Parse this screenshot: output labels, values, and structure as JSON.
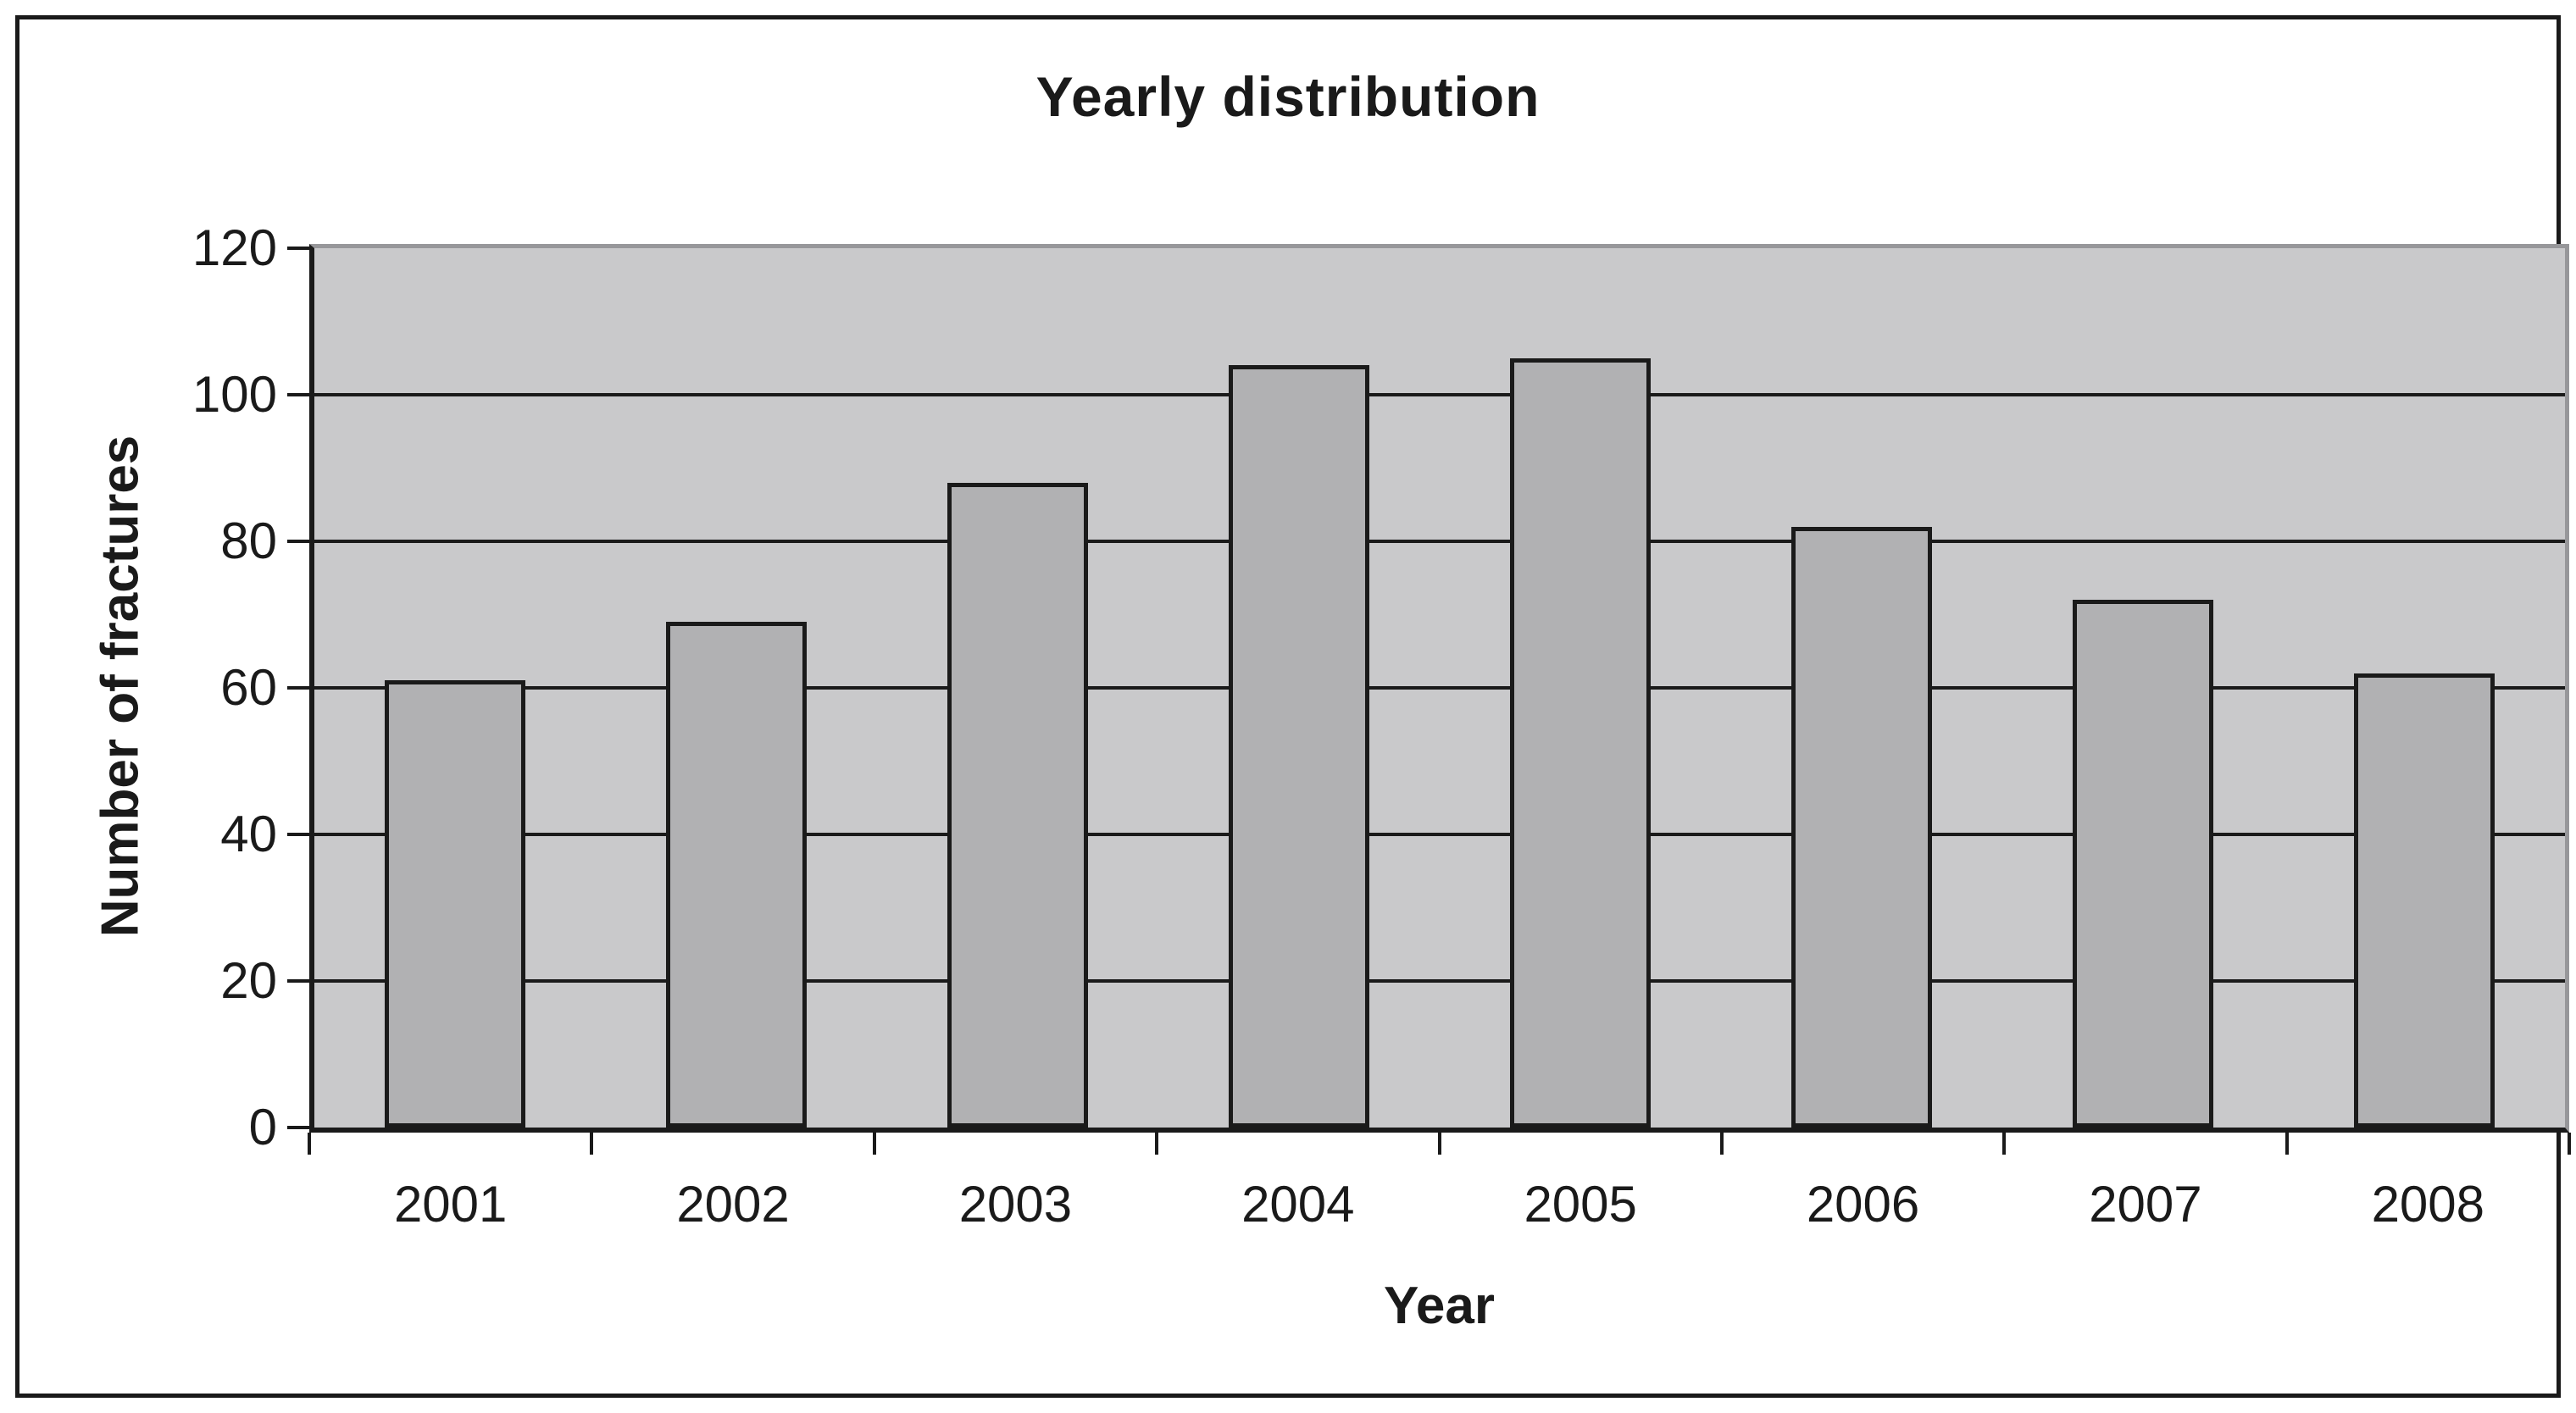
{
  "chart_data": {
    "type": "bar",
    "title": "Yearly distribution",
    "categories": [
      "2001",
      "2002",
      "2003",
      "2004",
      "2005",
      "2006",
      "2007",
      "2008"
    ],
    "values": [
      61,
      69,
      88,
      104,
      105,
      82,
      72,
      62
    ],
    "xlabel": "Year",
    "ylabel": "Number of fractures",
    "ylim": [
      0,
      120
    ],
    "yticks": [
      0,
      20,
      40,
      60,
      80,
      100,
      120
    ],
    "grid": "horizontal",
    "legend": "none"
  },
  "colors": {
    "figure_background": "#ffffff",
    "plot_background": "#c9c9cb",
    "bar_fill": "#b1b1b3",
    "line_black": "#1a1a1a",
    "plot_border_gray": "#97979a"
  }
}
